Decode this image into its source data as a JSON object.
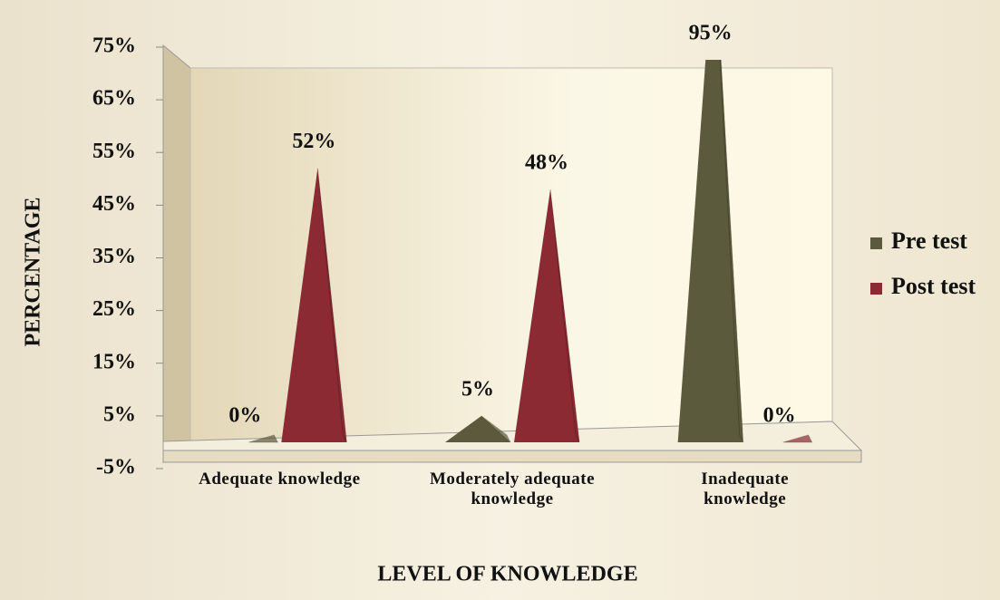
{
  "chart_data": {
    "type": "pyramid",
    "x_label": "LEVEL OF KNOWLEDGE",
    "y_label": "PERCENTAGE",
    "categories": [
      "Adequate knowledge",
      "Moderately adequate knowledge",
      "Inadequate knowledge"
    ],
    "series": [
      {
        "name": "Pre test",
        "color": "#5c5a3c",
        "values": [
          0,
          5,
          95
        ],
        "value_labels": [
          "0%",
          "5%",
          "95%"
        ]
      },
      {
        "name": "Post test",
        "color": "#8b2a33",
        "values": [
          52,
          48,
          0
        ],
        "value_labels": [
          "52%",
          "48%",
          "0%"
        ]
      }
    ],
    "ylim": [
      -5,
      75
    ],
    "yticks": [
      {
        "value": -5,
        "label": "-5%"
      },
      {
        "value": 5,
        "label": "5%"
      },
      {
        "value": 15,
        "label": "15%"
      },
      {
        "value": 25,
        "label": "25%"
      },
      {
        "value": 35,
        "label": "35%"
      },
      {
        "value": 45,
        "label": "45%"
      },
      {
        "value": 55,
        "label": "55%"
      },
      {
        "value": 65,
        "label": "65%"
      },
      {
        "value": 75,
        "label": "75%"
      }
    ],
    "legend": "right",
    "grid": false
  }
}
